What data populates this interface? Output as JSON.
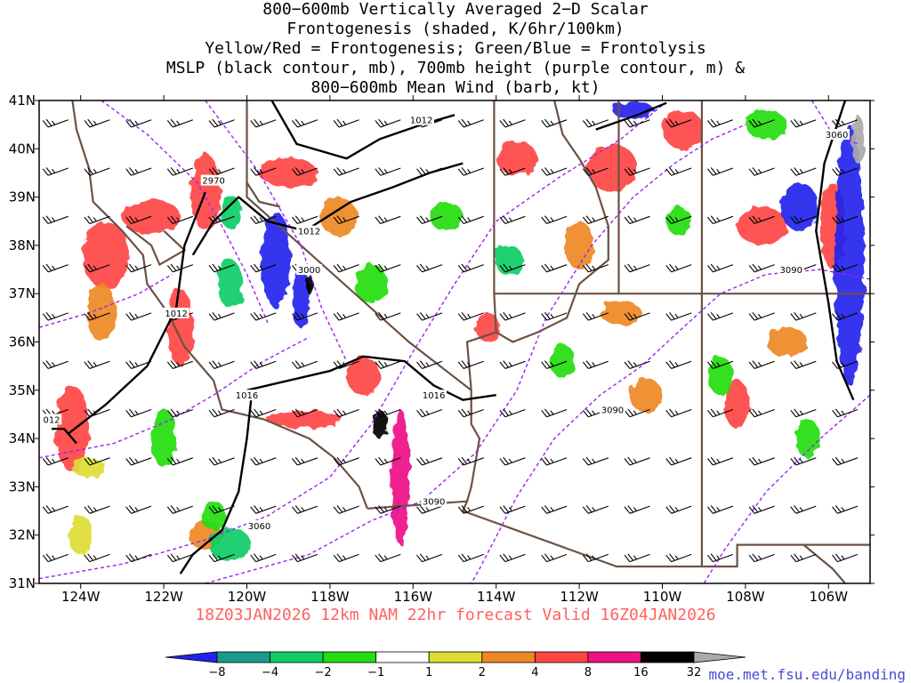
{
  "title_lines": [
    "800−600mb Vertically Averaged 2−D Scalar",
    "Frontogenesis (shaded, K/6hr/100km)",
    "Yellow/Red = Frontogenesis;  Green/Blue = Frontolysis",
    "MSLP (black contour, mb), 700mb height (purple contour, m) &",
    "800−600mb Mean Wind (barb, kt)"
  ],
  "valid_line": "18Z03JAN2026 12km NAM 22hr forecast Valid 16Z04JAN2026",
  "credit": "moe.met.fsu.edu/banding",
  "colors": {
    "coast": "#6b5244",
    "mslp": "#000000",
    "height": "#a020f0",
    "barb": "#000000",
    "frame": "#000000"
  },
  "chart_data": {
    "type": "heatmap",
    "projection": "lat-lon",
    "xlim": [
      -125,
      -105
    ],
    "ylim": [
      31,
      41
    ],
    "x_ticks": [
      {
        "value": -124,
        "label": "124W"
      },
      {
        "value": -122,
        "label": "122W"
      },
      {
        "value": -120,
        "label": "120W"
      },
      {
        "value": -118,
        "label": "118W"
      },
      {
        "value": -116,
        "label": "116W"
      },
      {
        "value": -114,
        "label": "114W"
      },
      {
        "value": -112,
        "label": "112W"
      },
      {
        "value": -110,
        "label": "110W"
      },
      {
        "value": -108,
        "label": "108W"
      },
      {
        "value": -106,
        "label": "106W"
      }
    ],
    "y_ticks": [
      {
        "value": 31,
        "label": "31N"
      },
      {
        "value": 32,
        "label": "32N"
      },
      {
        "value": 33,
        "label": "33N"
      },
      {
        "value": 34,
        "label": "34N"
      },
      {
        "value": 35,
        "label": "35N"
      },
      {
        "value": 36,
        "label": "36N"
      },
      {
        "value": 37,
        "label": "37N"
      },
      {
        "value": 38,
        "label": "38N"
      },
      {
        "value": 39,
        "label": "39N"
      },
      {
        "value": 40,
        "label": "40N"
      },
      {
        "value": 41,
        "label": "41N"
      }
    ],
    "colorbar": {
      "labels": [
        "−8",
        "−4",
        "−2",
        "−1",
        "1",
        "2",
        "4",
        "8",
        "16",
        "32"
      ],
      "colors": [
        "#2222ee",
        "#1a9a8a",
        "#11cc66",
        "#22dd11",
        "#ffffff",
        "#dddd33",
        "#ee8822",
        "#ff4444",
        "#ee1188",
        "#000000",
        "#aaaaaa"
      ]
    },
    "shading_blobs": [
      {
        "lon": -123.4,
        "lat": 37.8,
        "rx": 0.55,
        "ry": 0.7,
        "value": 6
      },
      {
        "lon": -123.5,
        "lat": 36.6,
        "rx": 0.35,
        "ry": 0.6,
        "value": 3
      },
      {
        "lon": -124.2,
        "lat": 34.2,
        "rx": 0.4,
        "ry": 0.9,
        "value": 4
      },
      {
        "lon": -122.3,
        "lat": 38.6,
        "rx": 0.7,
        "ry": 0.35,
        "value": 5
      },
      {
        "lon": -121.0,
        "lat": 39.1,
        "rx": 0.35,
        "ry": 0.8,
        "value": 7
      },
      {
        "lon": -121.6,
        "lat": 36.3,
        "rx": 0.3,
        "ry": 0.8,
        "value": 4
      },
      {
        "lon": -119.0,
        "lat": 39.5,
        "rx": 0.7,
        "ry": 0.3,
        "value": 5
      },
      {
        "lon": -117.8,
        "lat": 38.6,
        "rx": 0.45,
        "ry": 0.4,
        "value": 3
      },
      {
        "lon": -117.2,
        "lat": 35.3,
        "rx": 0.4,
        "ry": 0.4,
        "value": 5
      },
      {
        "lon": -116.3,
        "lat": 33.2,
        "rx": 0.22,
        "ry": 1.4,
        "value": 14
      },
      {
        "lon": -116.8,
        "lat": 34.3,
        "rx": 0.18,
        "ry": 0.3,
        "value": 20
      },
      {
        "lon": -118.6,
        "lat": 34.4,
        "rx": 0.9,
        "ry": 0.18,
        "value": 5
      },
      {
        "lon": -113.5,
        "lat": 39.8,
        "rx": 0.5,
        "ry": 0.35,
        "value": 5
      },
      {
        "lon": -112.0,
        "lat": 38.0,
        "rx": 0.35,
        "ry": 0.5,
        "value": 3
      },
      {
        "lon": -111.2,
        "lat": 39.6,
        "rx": 0.6,
        "ry": 0.5,
        "value": 4
      },
      {
        "lon": -109.5,
        "lat": 40.4,
        "rx": 0.5,
        "ry": 0.4,
        "value": 5
      },
      {
        "lon": -107.6,
        "lat": 38.4,
        "rx": 0.6,
        "ry": 0.4,
        "value": 6
      },
      {
        "lon": -105.9,
        "lat": 38.4,
        "rx": 0.3,
        "ry": 0.9,
        "value": 7
      },
      {
        "lon": -107.0,
        "lat": 36.0,
        "rx": 0.5,
        "ry": 0.3,
        "value": 3
      },
      {
        "lon": -108.2,
        "lat": 34.7,
        "rx": 0.3,
        "ry": 0.5,
        "value": 6
      },
      {
        "lon": -110.4,
        "lat": 34.9,
        "rx": 0.4,
        "ry": 0.35,
        "value": 3
      },
      {
        "lon": -111.0,
        "lat": 36.6,
        "rx": 0.5,
        "ry": 0.25,
        "value": 3
      },
      {
        "lon": -114.2,
        "lat": 36.3,
        "rx": 0.3,
        "ry": 0.3,
        "value": 4
      },
      {
        "lon": -121.0,
        "lat": 32.0,
        "rx": 0.4,
        "ry": 0.3,
        "value": 3
      },
      {
        "lon": -124.0,
        "lat": 32.0,
        "rx": 0.3,
        "ry": 0.4,
        "value": 1.5
      },
      {
        "lon": -123.8,
        "lat": 33.4,
        "rx": 0.4,
        "ry": 0.2,
        "value": 1.5
      },
      {
        "lon": -122.0,
        "lat": 34.0,
        "rx": 0.3,
        "ry": 0.6,
        "value": -1.5
      },
      {
        "lon": -120.4,
        "lat": 37.2,
        "rx": 0.3,
        "ry": 0.5,
        "value": -3
      },
      {
        "lon": -119.3,
        "lat": 37.7,
        "rx": 0.35,
        "ry": 1.0,
        "value": -9
      },
      {
        "lon": -118.7,
        "lat": 36.9,
        "rx": 0.22,
        "ry": 0.6,
        "value": -9
      },
      {
        "lon": -118.5,
        "lat": 37.2,
        "rx": 0.08,
        "ry": 0.2,
        "value": 20
      },
      {
        "lon": -120.4,
        "lat": 38.7,
        "rx": 0.25,
        "ry": 0.35,
        "value": -3
      },
      {
        "lon": -120.4,
        "lat": 31.8,
        "rx": 0.5,
        "ry": 0.35,
        "value": -3
      },
      {
        "lon": -120.8,
        "lat": 32.4,
        "rx": 0.3,
        "ry": 0.3,
        "value": -1.5
      },
      {
        "lon": -117.0,
        "lat": 37.2,
        "rx": 0.4,
        "ry": 0.4,
        "value": -1.5
      },
      {
        "lon": -115.2,
        "lat": 38.6,
        "rx": 0.4,
        "ry": 0.3,
        "value": -1.5
      },
      {
        "lon": -113.7,
        "lat": 37.7,
        "rx": 0.35,
        "ry": 0.3,
        "value": -3
      },
      {
        "lon": -112.4,
        "lat": 35.6,
        "rx": 0.3,
        "ry": 0.35,
        "value": -1.5
      },
      {
        "lon": -110.7,
        "lat": 40.8,
        "rx": 0.5,
        "ry": 0.18,
        "value": -9
      },
      {
        "lon": -109.6,
        "lat": 38.5,
        "rx": 0.3,
        "ry": 0.3,
        "value": -1.5
      },
      {
        "lon": -108.6,
        "lat": 35.3,
        "rx": 0.3,
        "ry": 0.4,
        "value": -1.5
      },
      {
        "lon": -106.7,
        "lat": 38.8,
        "rx": 0.45,
        "ry": 0.5,
        "value": -9
      },
      {
        "lon": -105.5,
        "lat": 37.8,
        "rx": 0.35,
        "ry": 2.7,
        "value": -9
      },
      {
        "lon": -105.3,
        "lat": 40.2,
        "rx": 0.15,
        "ry": 0.5,
        "value": 40
      },
      {
        "lon": -107.5,
        "lat": 40.5,
        "rx": 0.5,
        "ry": 0.3,
        "value": -1.5
      },
      {
        "lon": -106.5,
        "lat": 34.0,
        "rx": 0.3,
        "ry": 0.4,
        "value": -1.5
      }
    ],
    "mslp_contours": [
      {
        "label": "1012",
        "label_at": [
          -118.5,
          38.3
        ],
        "points": [
          [
            -121.3,
            37.8
          ],
          [
            -120.8,
            38.5
          ],
          [
            -120.2,
            39.0
          ],
          [
            -119.5,
            38.5
          ],
          [
            -118.6,
            38.3
          ],
          [
            -117.5,
            38.9
          ],
          [
            -116.5,
            39.2
          ],
          [
            -115.6,
            39.5
          ],
          [
            -114.8,
            39.7
          ]
        ]
      },
      {
        "label": "1012",
        "label_at": [
          -115.8,
          40.6
        ],
        "points": [
          [
            -119.4,
            41.0
          ],
          [
            -118.8,
            40.1
          ],
          [
            -117.6,
            39.8
          ],
          [
            -116.8,
            40.2
          ],
          [
            -115.8,
            40.5
          ],
          [
            -115.0,
            40.7
          ]
        ]
      },
      {
        "label": "1012",
        "label_at": [
          -121.7,
          36.6
        ],
        "points": [
          [
            -121.0,
            39.1
          ],
          [
            -121.5,
            38.0
          ],
          [
            -121.7,
            36.7
          ],
          [
            -122.4,
            35.5
          ],
          [
            -123.4,
            34.7
          ],
          [
            -124.3,
            34.1
          ]
        ]
      },
      {
        "label": "012",
        "label_at": [
          -124.7,
          34.4
        ],
        "points": [
          [
            -124.7,
            34.2
          ],
          [
            -124.4,
            34.2
          ],
          [
            -124.1,
            33.9
          ]
        ]
      },
      {
        "label": "1016",
        "label_at": [
          -120.0,
          34.9
        ],
        "points": [
          [
            -119.9,
            34.8
          ],
          [
            -120.0,
            34.0
          ],
          [
            -120.2,
            32.9
          ],
          [
            -120.6,
            32.1
          ],
          [
            -121.3,
            31.6
          ],
          [
            -121.6,
            31.2
          ]
        ]
      },
      {
        "label": "1016",
        "label_at": [
          -115.5,
          34.9
        ],
        "points": [
          [
            -120.0,
            35.0
          ],
          [
            -119.0,
            35.2
          ],
          [
            -118.0,
            35.4
          ],
          [
            -117.2,
            35.7
          ],
          [
            -116.2,
            35.6
          ],
          [
            -115.5,
            35.1
          ],
          [
            -114.8,
            34.8
          ],
          [
            -114.0,
            34.9
          ]
        ]
      },
      {
        "label": "",
        "label_at": null,
        "points": [
          [
            -111.6,
            40.4
          ],
          [
            -110.6,
            40.7
          ],
          [
            -109.9,
            40.95
          ]
        ]
      },
      {
        "label": "",
        "label_at": null,
        "points": [
          [
            -105.6,
            41.0
          ],
          [
            -106.1,
            39.7
          ],
          [
            -106.3,
            38.3
          ],
          [
            -106.0,
            36.8
          ],
          [
            -105.8,
            35.6
          ],
          [
            -105.4,
            34.8
          ]
        ]
      }
    ],
    "height_contours": [
      {
        "label": "2970",
        "label_at": [
          -120.8,
          39.35
        ],
        "points": [
          [
            -123.5,
            41.0
          ],
          [
            -122.4,
            40.3
          ],
          [
            -121.2,
            39.3
          ],
          [
            -120.6,
            38.4
          ],
          [
            -120.0,
            37.4
          ],
          [
            -119.5,
            36.4
          ]
        ]
      },
      {
        "label": "3000",
        "label_at": [
          -118.5,
          37.5
        ],
        "points": [
          [
            -121.0,
            41.0
          ],
          [
            -119.7,
            39.5
          ],
          [
            -118.7,
            38.0
          ],
          [
            -118.2,
            36.7
          ],
          [
            -117.6,
            35.6
          ]
        ]
      },
      {
        "label": "",
        "label_at": null,
        "points": [
          [
            -125.0,
            36.3
          ],
          [
            -123.8,
            36.6
          ],
          [
            -122.6,
            37.0
          ],
          [
            -121.8,
            37.4
          ]
        ]
      },
      {
        "label": "",
        "label_at": null,
        "points": [
          [
            -125.0,
            33.6
          ],
          [
            -123.2,
            33.9
          ],
          [
            -121.8,
            34.4
          ],
          [
            -120.8,
            34.9
          ],
          [
            -119.6,
            35.6
          ],
          [
            -118.5,
            36.1
          ]
        ]
      },
      {
        "label": "3060",
        "label_at": [
          -119.7,
          32.2
        ],
        "points": [
          [
            -125.0,
            31.1
          ],
          [
            -123.0,
            31.4
          ],
          [
            -121.0,
            31.9
          ],
          [
            -119.5,
            32.4
          ],
          [
            -118.0,
            33.2
          ],
          [
            -117.0,
            34.3
          ],
          [
            -116.0,
            35.8
          ],
          [
            -115.0,
            37.2
          ],
          [
            -114.0,
            38.5
          ],
          [
            -112.5,
            39.4
          ],
          [
            -111.0,
            40.2
          ],
          [
            -110.0,
            40.9
          ]
        ]
      },
      {
        "label": "3060",
        "label_at": [
          -105.8,
          40.3
        ],
        "points": [
          [
            -106.4,
            41.0
          ],
          [
            -105.9,
            40.3
          ],
          [
            -105.3,
            40.1
          ]
        ]
      },
      {
        "label": "3090",
        "label_at": [
          -115.5,
          32.7
        ],
        "points": [
          [
            -121.0,
            31.0
          ],
          [
            -118.5,
            31.6
          ],
          [
            -117.0,
            32.3
          ],
          [
            -115.8,
            32.7
          ],
          [
            -114.5,
            33.7
          ],
          [
            -113.5,
            35.0
          ],
          [
            -112.8,
            36.5
          ],
          [
            -111.7,
            38.0
          ],
          [
            -110.7,
            39.0
          ],
          [
            -109.7,
            39.7
          ],
          [
            -108.8,
            40.2
          ],
          [
            -108.0,
            40.5
          ]
        ]
      },
      {
        "label": "3090",
        "label_at": [
          -106.9,
          37.5
        ],
        "points": [
          [
            -105.0,
            37.3
          ],
          [
            -106.2,
            37.5
          ],
          [
            -107.5,
            37.4
          ],
          [
            -108.6,
            37.0
          ],
          [
            -109.5,
            36.3
          ],
          [
            -110.5,
            35.5
          ],
          [
            -111.5,
            34.9
          ],
          [
            -112.6,
            34.0
          ],
          [
            -113.5,
            32.8
          ],
          [
            -114.4,
            31.3
          ],
          [
            -114.6,
            31.0
          ]
        ]
      },
      {
        "label": "3090",
        "label_at": [
          -111.2,
          34.6
        ],
        "points": [
          [
            -105.0,
            34.9
          ],
          [
            -106.2,
            34.0
          ],
          [
            -107.5,
            32.9
          ],
          [
            -108.5,
            31.7
          ],
          [
            -109.0,
            31.0
          ]
        ]
      }
    ],
    "wind_barbs": {
      "lon_start": -124.3,
      "lon_step": 1.0,
      "lon_count": 20,
      "lat_start": 31.6,
      "lat_step": 1.0,
      "lat_count": 10,
      "direction_deg": 250,
      "speed_kt": 25
    }
  }
}
